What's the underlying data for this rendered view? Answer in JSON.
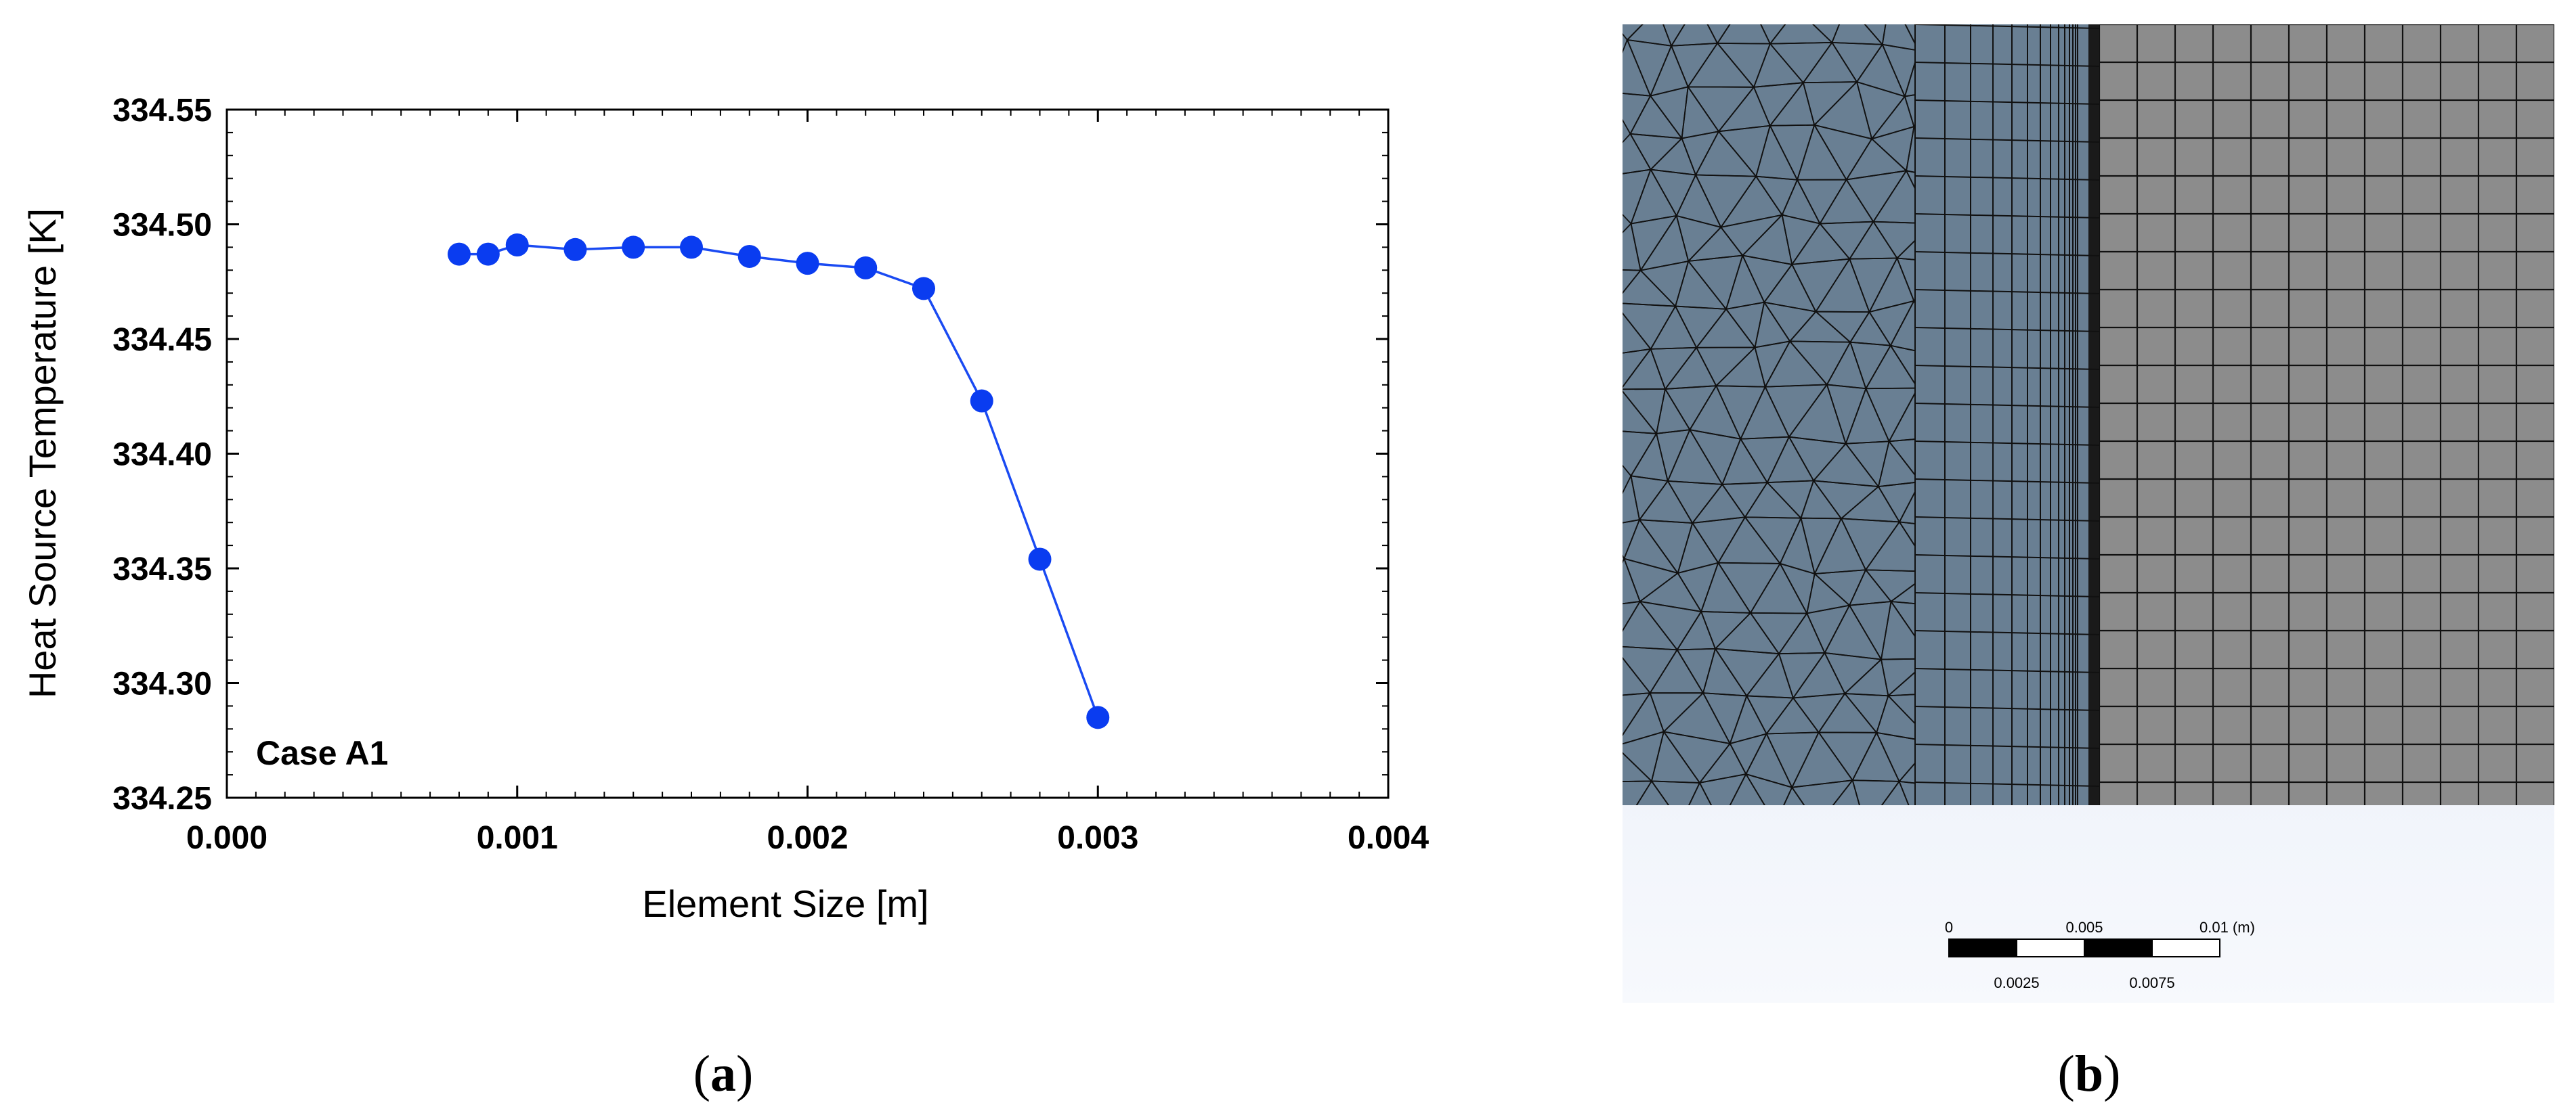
{
  "chart_data": {
    "type": "scatter",
    "title": "",
    "xlabel": "Element Size [m]",
    "ylabel": "Heat Source Temperature [K]",
    "annotation": "Case A1",
    "xlim": [
      0.0,
      0.004
    ],
    "ylim": [
      334.25,
      334.55
    ],
    "xticks": [
      "0.000",
      "0.001",
      "0.002",
      "0.003",
      "0.004"
    ],
    "yticks": [
      "334.25",
      "334.30",
      "334.35",
      "334.40",
      "334.45",
      "334.50",
      "334.55"
    ],
    "grid": false,
    "marker_color": "#0a3cf0",
    "line_color": "#1a4af2",
    "series": [
      {
        "x": [
          0.0008,
          0.0009,
          0.001,
          0.0012,
          0.0014,
          0.0016,
          0.0018,
          0.002,
          0.0022,
          0.0024,
          0.0026,
          0.0028,
          0.003
        ],
        "y": [
          334.487,
          334.487,
          334.491,
          334.489,
          334.49,
          334.49,
          334.486,
          334.483,
          334.481,
          334.472,
          334.423,
          334.354,
          334.285
        ]
      }
    ]
  },
  "mesh_view": {
    "scale_bar": {
      "top_labels": [
        "0",
        "0.005",
        "0.01 (m)"
      ],
      "bottom_labels": [
        "0.0025",
        "0.0075"
      ]
    },
    "colors": {
      "solid_region": "#697f93",
      "fluid_region": "#8c8c8c",
      "mesh_lines": "#111111",
      "background_top": "#d9e2f1",
      "background_bottom": "#f7f9fd"
    }
  },
  "panel_labels": {
    "a": {
      "open": "(",
      "letter": "a",
      "close": ")"
    },
    "b": {
      "open": "(",
      "letter": "b",
      "close": ")"
    }
  }
}
